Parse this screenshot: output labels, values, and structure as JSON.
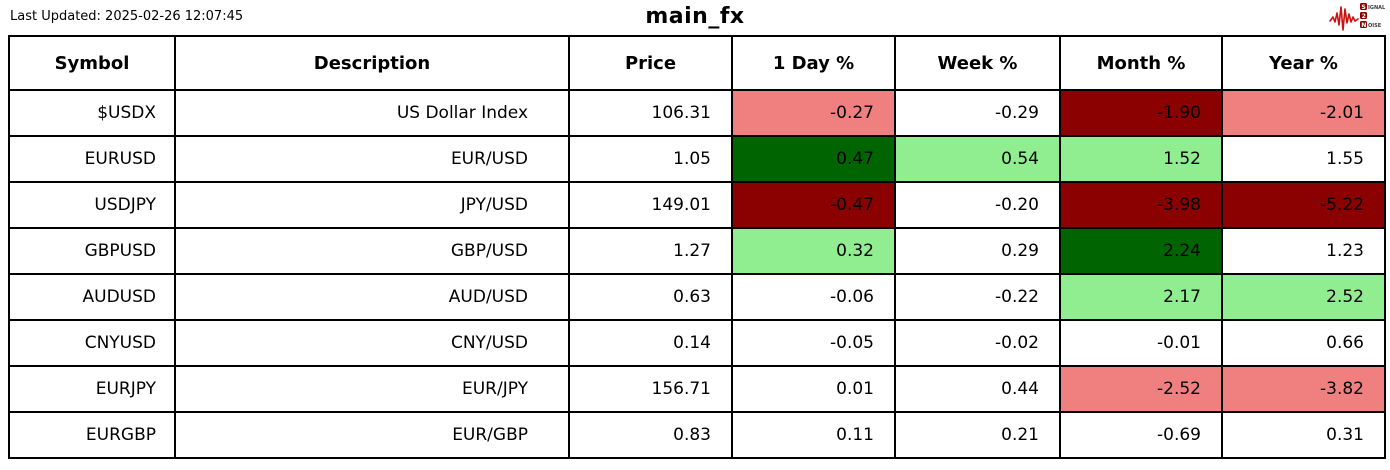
{
  "title": "main_fx",
  "last_updated": "Last Updated: 2025-02-26 12:07:45",
  "logo": {
    "line1_initial": "S",
    "line1_rest": "IGNAL",
    "line2_initial": "2",
    "line3_initial": "N",
    "line3_rest": "OISE"
  },
  "colors": {
    "white": "#ffffff",
    "lightcoral": "#f08080",
    "darkred": "#8b0000",
    "lightgreen": "#90ee90",
    "darkgreen": "#006400",
    "logo_red": "#cc1111",
    "logo_box": "#8b0000"
  },
  "chart_data": {
    "type": "table",
    "title": "main_fx",
    "columns": [
      "Symbol",
      "Description",
      "Price",
      "1 Day %",
      "Week %",
      "Month %",
      "Year %"
    ],
    "rows": [
      {
        "symbol": "$USDX",
        "description": "US Dollar Index",
        "price": "106.31",
        "changes": [
          {
            "value": "-0.27",
            "bg": "lightcoral"
          },
          {
            "value": "-0.29",
            "bg": "white"
          },
          {
            "value": "-1.90",
            "bg": "darkred"
          },
          {
            "value": "-2.01",
            "bg": "lightcoral"
          }
        ]
      },
      {
        "symbol": "EURUSD",
        "description": "EUR/USD",
        "price": "1.05",
        "changes": [
          {
            "value": "0.47",
            "bg": "darkgreen"
          },
          {
            "value": "0.54",
            "bg": "lightgreen"
          },
          {
            "value": "1.52",
            "bg": "lightgreen"
          },
          {
            "value": "1.55",
            "bg": "white"
          }
        ]
      },
      {
        "symbol": "USDJPY",
        "description": "JPY/USD",
        "price": "149.01",
        "changes": [
          {
            "value": "-0.47",
            "bg": "darkred"
          },
          {
            "value": "-0.20",
            "bg": "white"
          },
          {
            "value": "-3.98",
            "bg": "darkred"
          },
          {
            "value": "-5.22",
            "bg": "darkred"
          }
        ]
      },
      {
        "symbol": "GBPUSD",
        "description": "GBP/USD",
        "price": "1.27",
        "changes": [
          {
            "value": "0.32",
            "bg": "lightgreen"
          },
          {
            "value": "0.29",
            "bg": "white"
          },
          {
            "value": "2.24",
            "bg": "darkgreen"
          },
          {
            "value": "1.23",
            "bg": "white"
          }
        ]
      },
      {
        "symbol": "AUDUSD",
        "description": "AUD/USD",
        "price": "0.63",
        "changes": [
          {
            "value": "-0.06",
            "bg": "white"
          },
          {
            "value": "-0.22",
            "bg": "white"
          },
          {
            "value": "2.17",
            "bg": "lightgreen"
          },
          {
            "value": "2.52",
            "bg": "lightgreen"
          }
        ]
      },
      {
        "symbol": "CNYUSD",
        "description": "CNY/USD",
        "price": "0.14",
        "changes": [
          {
            "value": "-0.05",
            "bg": "white"
          },
          {
            "value": "-0.02",
            "bg": "white"
          },
          {
            "value": "-0.01",
            "bg": "white"
          },
          {
            "value": "0.66",
            "bg": "white"
          }
        ]
      },
      {
        "symbol": "EURJPY",
        "description": "EUR/JPY",
        "price": "156.71",
        "changes": [
          {
            "value": "0.01",
            "bg": "white"
          },
          {
            "value": "0.44",
            "bg": "white"
          },
          {
            "value": "-2.52",
            "bg": "lightcoral"
          },
          {
            "value": "-3.82",
            "bg": "lightcoral"
          }
        ]
      },
      {
        "symbol": "EURGBP",
        "description": "EUR/GBP",
        "price": "0.83",
        "changes": [
          {
            "value": "0.11",
            "bg": "white"
          },
          {
            "value": "0.21",
            "bg": "white"
          },
          {
            "value": "-0.69",
            "bg": "white"
          },
          {
            "value": "0.31",
            "bg": "white"
          }
        ]
      }
    ]
  }
}
